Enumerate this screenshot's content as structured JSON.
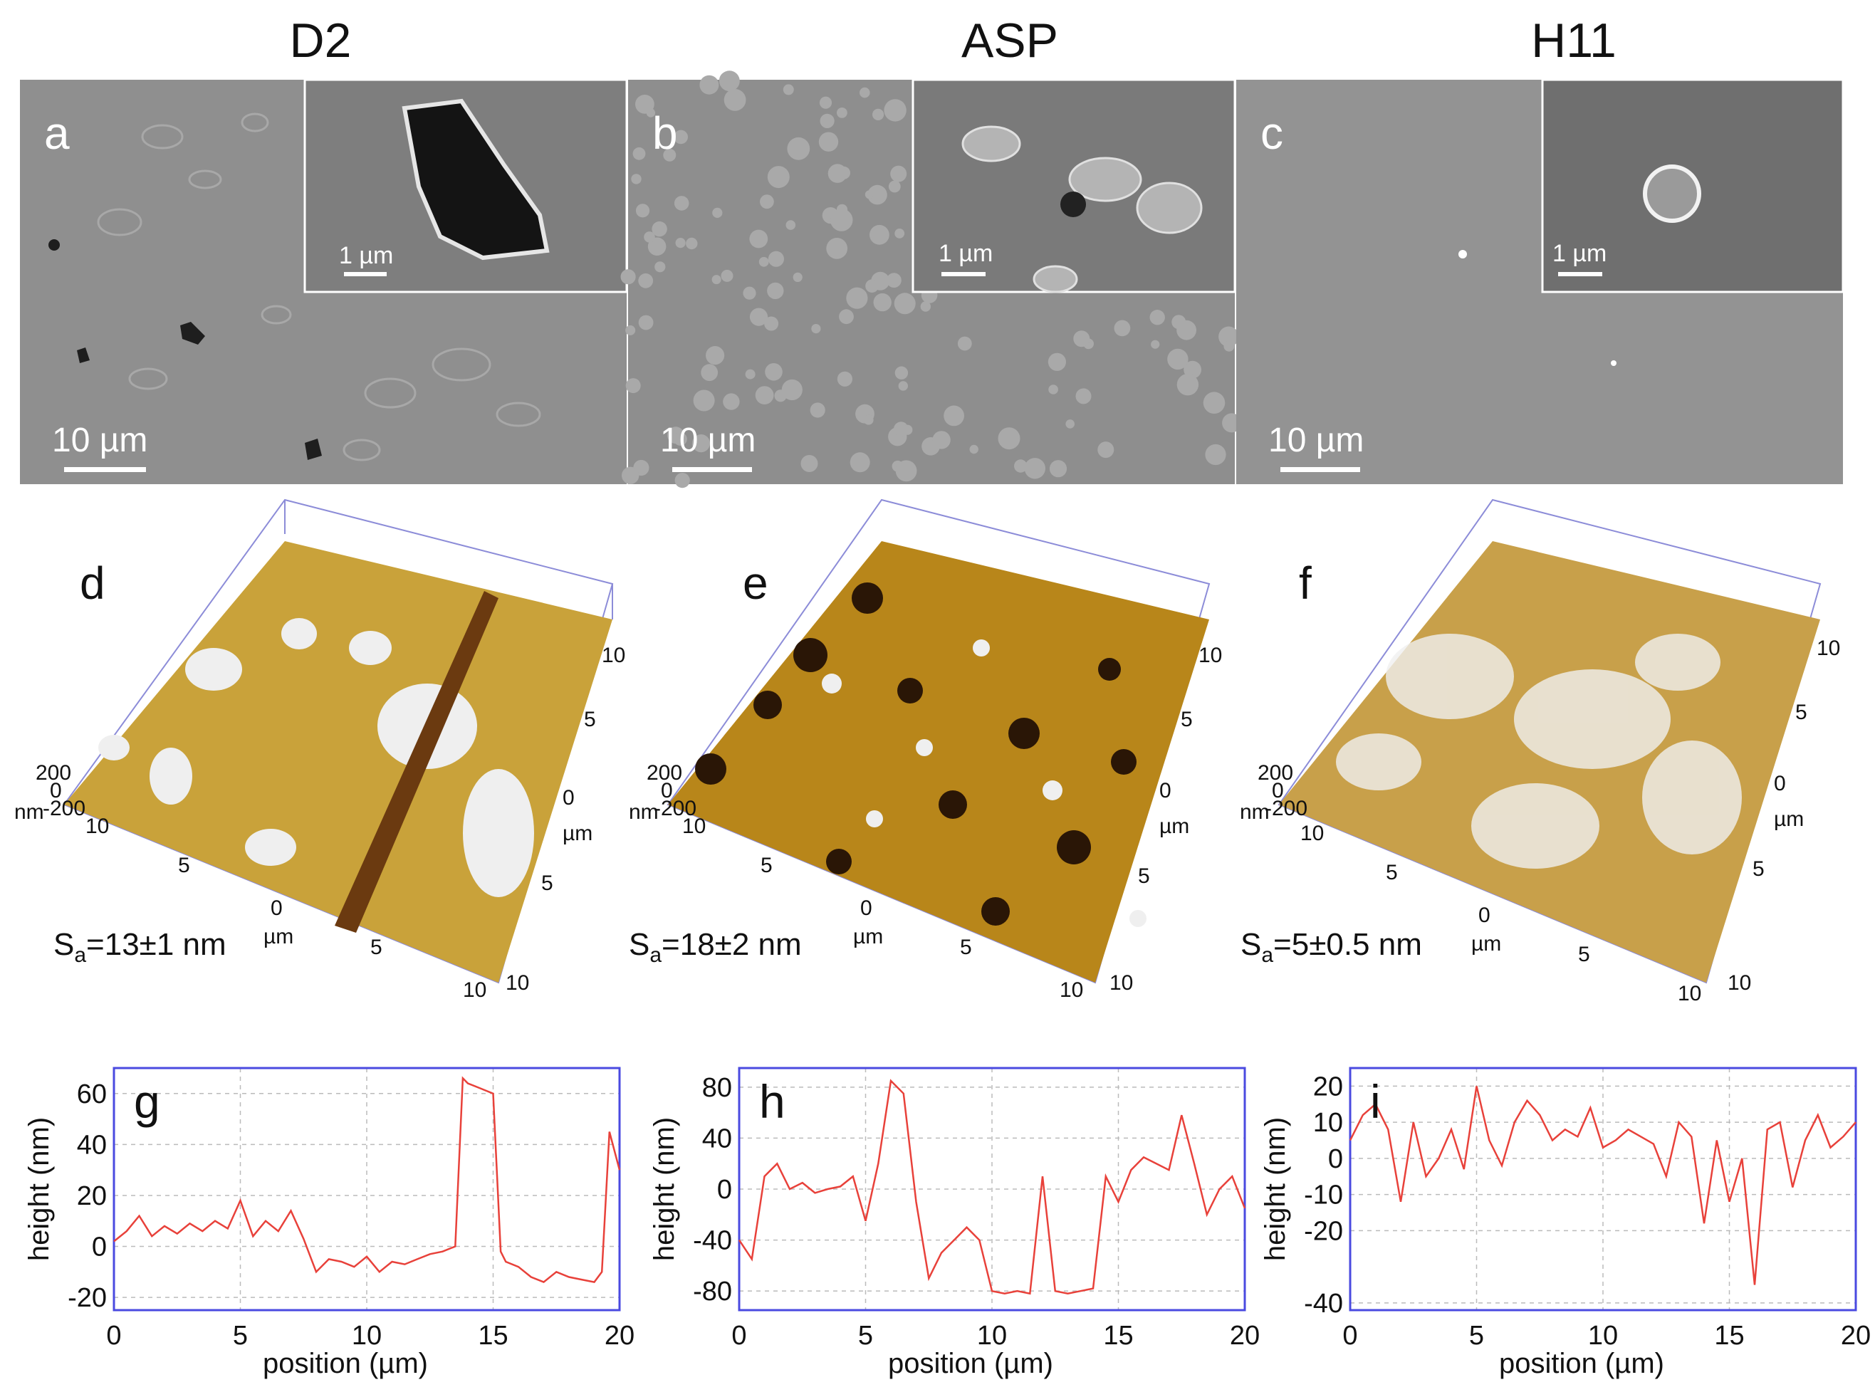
{
  "columns": [
    {
      "title": "D2"
    },
    {
      "title": "ASP"
    },
    {
      "title": "H11"
    }
  ],
  "sem_panels": [
    {
      "letter": "a",
      "scale_main": "10 µm",
      "scale_inset": "1 µm"
    },
    {
      "letter": "b",
      "scale_main": "10 µm",
      "scale_inset": "1 µm"
    },
    {
      "letter": "c",
      "scale_main": "10 µm",
      "scale_inset": "1 µm"
    }
  ],
  "afm_panels": [
    {
      "letter": "d",
      "sa_prefix": "S",
      "sa_sub": "a",
      "sa_value": "=13±1 nm",
      "z_unit": "nm",
      "xy_unit": "µm",
      "z_ticks": [
        "200",
        "0",
        "-200"
      ],
      "xy_ticks": [
        "10",
        "5",
        "0",
        "5",
        "10"
      ]
    },
    {
      "letter": "e",
      "sa_prefix": "S",
      "sa_sub": "a",
      "sa_value": "=18±2 nm",
      "z_unit": "nm",
      "xy_unit": "µm",
      "z_ticks": [
        "200",
        "0",
        "-200"
      ],
      "xy_ticks": [
        "10",
        "5",
        "0",
        "5",
        "10"
      ]
    },
    {
      "letter": "f",
      "sa_prefix": "S",
      "sa_sub": "a",
      "sa_value": "=5±0.5 nm",
      "z_unit": "nm",
      "xy_unit": "µm",
      "z_ticks": [
        "200",
        "0",
        "-200"
      ],
      "xy_ticks": [
        "10",
        "5",
        "0",
        "5",
        "10"
      ]
    }
  ],
  "colors": {
    "line": "#e8413a",
    "frame": "#4a4ae0",
    "sem_bg": "#8f8f8f",
    "afm_gold": "#c9a23a"
  },
  "chart_data": [
    {
      "type": "line",
      "letter": "g",
      "xlabel": "position (µm)",
      "ylabel": "height (nm)",
      "xlim": [
        0,
        20
      ],
      "ylim": [
        -25,
        70
      ],
      "xticks": [
        0,
        5,
        10,
        15,
        20
      ],
      "yticks": [
        -20,
        0,
        20,
        40,
        60
      ],
      "grid": true,
      "x": [
        0,
        0.5,
        1,
        1.5,
        2,
        2.5,
        3,
        3.5,
        4,
        4.5,
        5,
        5.5,
        6,
        6.5,
        7,
        7.5,
        8,
        8.5,
        9,
        9.5,
        10,
        10.5,
        11,
        11.5,
        12,
        12.5,
        13,
        13.5,
        13.8,
        14,
        14.5,
        15,
        15.3,
        15.5,
        16,
        16.5,
        17,
        17.5,
        18,
        18.5,
        19,
        19.3,
        19.6,
        20
      ],
      "y": [
        2,
        6,
        12,
        4,
        8,
        5,
        9,
        6,
        10,
        7,
        18,
        4,
        10,
        6,
        14,
        3,
        -10,
        -5,
        -6,
        -8,
        -4,
        -10,
        -6,
        -7,
        -5,
        -3,
        -2,
        0,
        66,
        64,
        62,
        60,
        -2,
        -6,
        -8,
        -12,
        -14,
        -10,
        -12,
        -13,
        -14,
        -10,
        45,
        30
      ]
    },
    {
      "type": "line",
      "letter": "h",
      "xlabel": "position (µm)",
      "ylabel": "height (nm)",
      "xlim": [
        0,
        20
      ],
      "ylim": [
        -95,
        95
      ],
      "xticks": [
        0,
        5,
        10,
        15,
        20
      ],
      "yticks": [
        -80,
        -40,
        0,
        40,
        80
      ],
      "grid": true,
      "x": [
        0,
        0.5,
        1,
        1.5,
        2,
        2.5,
        3,
        3.5,
        4,
        4.5,
        5,
        5.5,
        6,
        6.5,
        7,
        7.5,
        8,
        8.5,
        9,
        9.5,
        10,
        10.5,
        11,
        11.5,
        12,
        12.5,
        13,
        13.5,
        14,
        14.5,
        15,
        15.5,
        16,
        16.5,
        17,
        17.5,
        18,
        18.5,
        19,
        19.5,
        20
      ],
      "y": [
        -40,
        -55,
        10,
        20,
        0,
        5,
        -3,
        0,
        2,
        10,
        -25,
        20,
        85,
        75,
        -10,
        -70,
        -50,
        -40,
        -30,
        -40,
        -80,
        -82,
        -80,
        -82,
        10,
        -80,
        -82,
        -80,
        -78,
        10,
        -10,
        15,
        25,
        20,
        15,
        58,
        20,
        -20,
        0,
        10,
        -15
      ]
    },
    {
      "type": "line",
      "letter": "i",
      "xlabel": "position (µm)",
      "ylabel": "height (nm)",
      "xlim": [
        0,
        20
      ],
      "ylim": [
        -42,
        25
      ],
      "xticks": [
        0,
        5,
        10,
        15,
        20
      ],
      "yticks": [
        -40,
        -20,
        -10,
        0,
        10,
        20
      ],
      "grid": true,
      "x": [
        0,
        0.5,
        1,
        1.5,
        2,
        2.5,
        3,
        3.5,
        4,
        4.5,
        5,
        5.5,
        6,
        6.5,
        7,
        7.5,
        8,
        8.5,
        9,
        9.5,
        10,
        10.5,
        11,
        11.5,
        12,
        12.5,
        13,
        13.5,
        14,
        14.5,
        15,
        15.5,
        16,
        16.5,
        17,
        17.5,
        18,
        18.5,
        19,
        19.5,
        20
      ],
      "y": [
        5,
        12,
        15,
        8,
        -12,
        10,
        -5,
        0,
        8,
        -3,
        20,
        5,
        -2,
        10,
        16,
        12,
        5,
        8,
        6,
        14,
        3,
        5,
        8,
        6,
        4,
        -5,
        10,
        6,
        -18,
        5,
        -12,
        0,
        -35,
        8,
        10,
        -8,
        5,
        12,
        3,
        6,
        10
      ]
    }
  ]
}
